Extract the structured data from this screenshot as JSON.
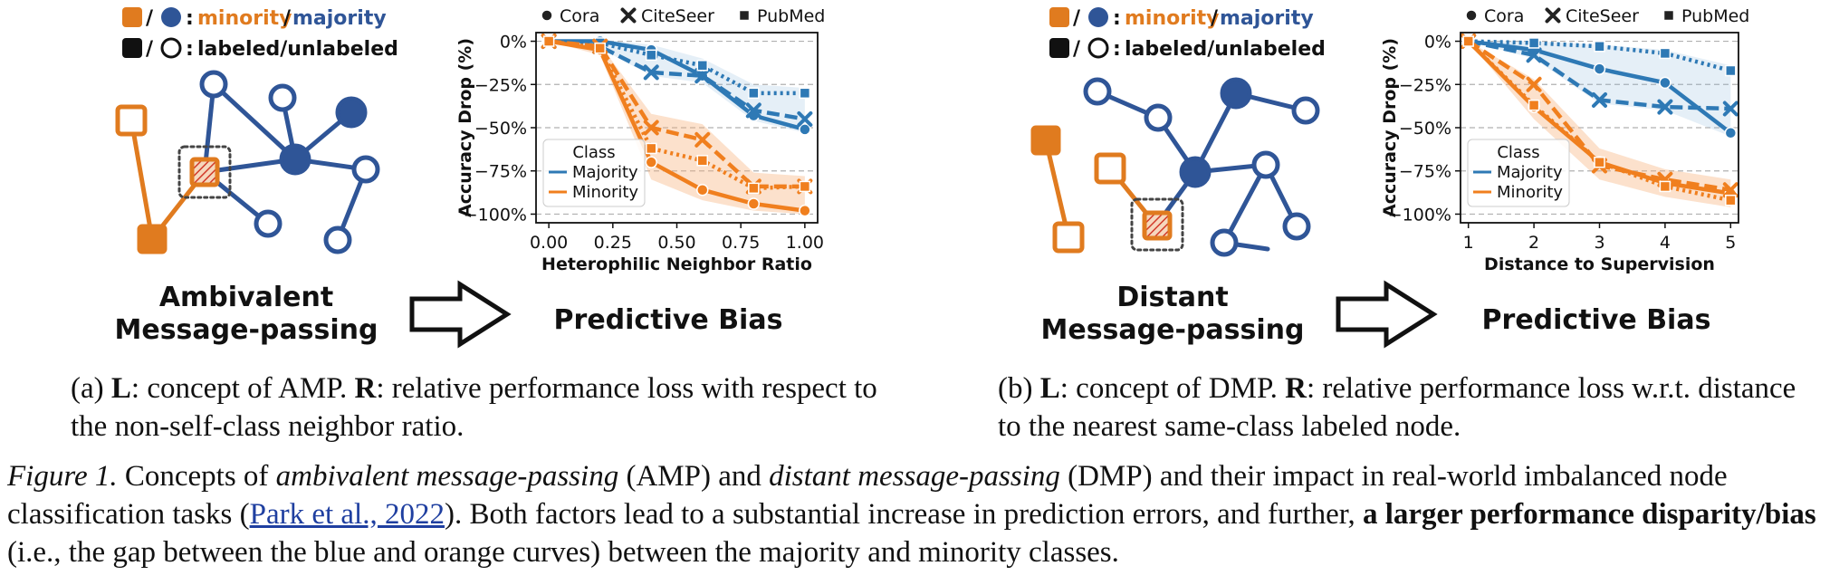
{
  "colors": {
    "minority": "#E07B1F",
    "majority": "#2F5597",
    "blue_series": "#2E79B5",
    "orange_series": "#F07F1E"
  },
  "legend_nodes": {
    "sep": "/",
    "colon": ":",
    "minority": "minority",
    "slash": "/",
    "majority": "majority",
    "labeled_unlabeled": "labeled/unlabeled"
  },
  "panel_a": {
    "concept_line1": "Ambivalent",
    "concept_line2": "Message-passing",
    "result_label": "Predictive Bias"
  },
  "panel_b": {
    "concept_line1": "Distant",
    "concept_line2": "Message-passing",
    "result_label": "Predictive Bias"
  },
  "dataset_legend": [
    "Cora",
    "CiteSeer",
    "PubMed"
  ],
  "chart_data": [
    {
      "type": "line",
      "xlabel": "Heterophilic Neighbor Ratio",
      "ylabel": "Accuracy Drop (%)",
      "xlim": [
        -0.05,
        1.05
      ],
      "ylim": [
        -105,
        5
      ],
      "xticks": [
        "0.00",
        "0.25",
        "0.50",
        "0.75",
        "1.00"
      ],
      "yticks": [
        "0%",
        "−25%",
        "−50%",
        "−75%",
        "−100%"
      ],
      "grid": "horizontal dashed",
      "legend": {
        "title": "Class",
        "entries": [
          "Majority",
          "Minority"
        ],
        "position": "lower-left"
      },
      "x": [
        0,
        0.2,
        0.4,
        0.6,
        0.8,
        1.0
      ],
      "series": [
        {
          "name": "Cora",
          "class": "Majority",
          "values": [
            0,
            0,
            -5,
            -20,
            -43,
            -51
          ]
        },
        {
          "name": "CiteSeer",
          "class": "Majority",
          "values": [
            0,
            -3,
            -18,
            -20,
            -40,
            -45
          ]
        },
        {
          "name": "PubMed",
          "class": "Majority",
          "values": [
            0,
            -1,
            -8,
            -14,
            -30,
            -30
          ]
        },
        {
          "name": "Cora",
          "class": "Minority",
          "values": [
            0,
            -5,
            -70,
            -86,
            -94,
            -98
          ]
        },
        {
          "name": "CiteSeer",
          "class": "Minority",
          "values": [
            0,
            -3,
            -50,
            -57,
            -84,
            -84
          ]
        },
        {
          "name": "PubMed",
          "class": "Minority",
          "values": [
            0,
            -4,
            -62,
            -69,
            -85,
            -84
          ]
        }
      ],
      "bands": {
        "Minority": {
          "upper": [
            0,
            -2,
            -42,
            -48,
            -76,
            -78
          ],
          "lower": [
            0,
            -8,
            -80,
            -92,
            -98,
            -100
          ]
        },
        "Majority": {
          "upper": [
            0,
            1,
            -2,
            -10,
            -25,
            -27
          ],
          "lower": [
            0,
            -4,
            -20,
            -24,
            -46,
            -53
          ]
        }
      }
    },
    {
      "type": "line",
      "xlabel": "Distance to Supervision",
      "ylabel": "Accuracy Drop (%)",
      "xlim": [
        0.88,
        5.12
      ],
      "ylim": [
        -105,
        5
      ],
      "xticks": [
        "1",
        "2",
        "3",
        "4",
        "5"
      ],
      "yticks": [
        "0%",
        "−25%",
        "−50%",
        "−75%",
        "−100%"
      ],
      "grid": "horizontal dashed",
      "legend": {
        "title": "Class",
        "entries": [
          "Majority",
          "Minority"
        ],
        "position": "lower-left"
      },
      "x": [
        1,
        2,
        3,
        4,
        5
      ],
      "series": [
        {
          "name": "Cora",
          "class": "Majority",
          "values": [
            0,
            -5,
            -16,
            -24,
            -53
          ]
        },
        {
          "name": "CiteSeer",
          "class": "Majority",
          "values": [
            0,
            -8,
            -34,
            -38,
            -39
          ]
        },
        {
          "name": "PubMed",
          "class": "Majority",
          "values": [
            0,
            -1,
            -3,
            -7,
            -17
          ]
        },
        {
          "name": "Cora",
          "class": "Minority",
          "values": [
            0,
            -38,
            -70,
            -82,
            -88
          ]
        },
        {
          "name": "CiteSeer",
          "class": "Minority",
          "values": [
            0,
            -25,
            -72,
            -80,
            -86
          ]
        },
        {
          "name": "PubMed",
          "class": "Minority",
          "values": [
            0,
            -37,
            -70,
            -84,
            -92
          ]
        }
      ],
      "bands": {
        "Minority": {
          "upper": [
            0,
            -22,
            -62,
            -74,
            -80
          ],
          "lower": [
            0,
            -45,
            -80,
            -90,
            -96
          ]
        },
        "Majority": {
          "upper": [
            0,
            0,
            -2,
            -5,
            -14
          ],
          "lower": [
            0,
            -10,
            -36,
            -40,
            -55
          ]
        }
      }
    }
  ],
  "subcaption_a": {
    "label": "(a) ",
    "L": "L",
    "text1": ": concept of AMP. ",
    "R": "R",
    "text2": ": relative performance loss with respect to the non-self-class neighbor ratio."
  },
  "subcaption_b": {
    "label": "(b) ",
    "L": "L",
    "text1": ": concept of DMP. ",
    "R": "R",
    "text2": ": relative performance loss w.r.t. distance to the nearest same-class labeled node."
  },
  "figure_caption": {
    "label": "Figure 1.",
    "t1": " Concepts of ",
    "amp": "ambivalent message-passing",
    "t2": " (AMP) and ",
    "dmp": "distant message-passing",
    "t3": " (DMP) and their impact in real-world imbalanced node classification tasks (",
    "cite": "Park et al., 2022",
    "t4": ").  Both factors lead to a substantial increase in prediction errors, and further, ",
    "bold": "a larger performance disparity/bias",
    "t5": " (i.e., the gap between the blue and orange curves) between the majority and minority classes."
  }
}
